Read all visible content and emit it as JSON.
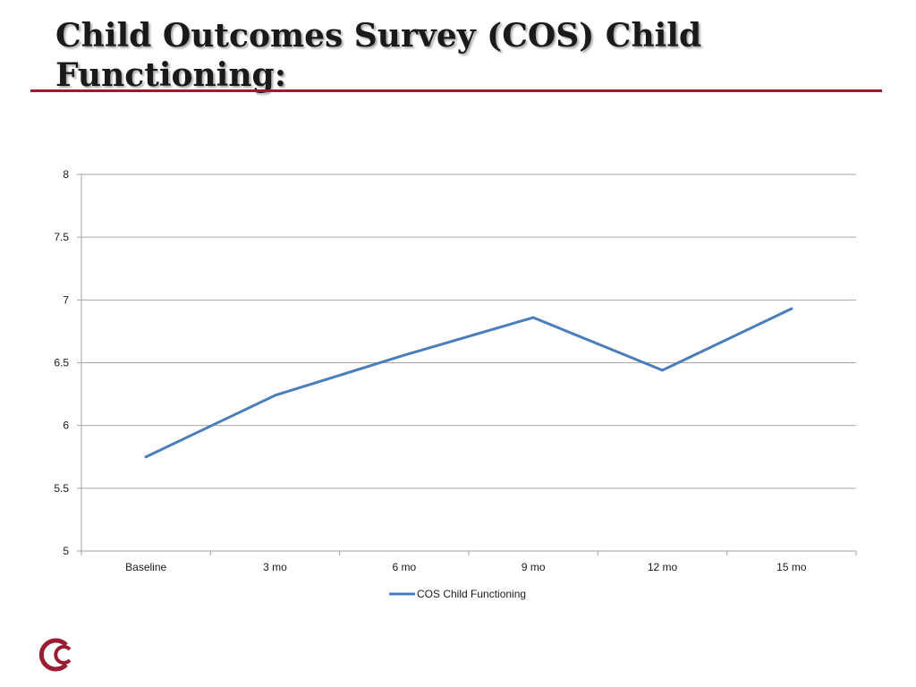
{
  "slide": {
    "title": "Child Outcomes Survey (COS) Child Functioning:"
  },
  "colors": {
    "accent_rule": "#9b1b30",
    "series_line": "#4a7ebb",
    "gridline": "#a6a6a6",
    "logo": "#9b1b30"
  },
  "icons": {
    "logo": "crescent-c-logo"
  },
  "chart_data": {
    "type": "line",
    "categories": [
      "Baseline",
      "3 mo",
      "6 mo",
      "9 mo",
      "12 mo",
      "15 mo"
    ],
    "series": [
      {
        "name": "COS Child Functioning",
        "values": [
          5.75,
          6.24,
          6.56,
          6.86,
          6.44,
          6.93
        ]
      }
    ],
    "yticks": [
      "5",
      "5.5",
      "6",
      "6.5",
      "7",
      "7.5",
      "8"
    ],
    "ylim": [
      5,
      8
    ],
    "grid": true,
    "legend": "bottom"
  }
}
